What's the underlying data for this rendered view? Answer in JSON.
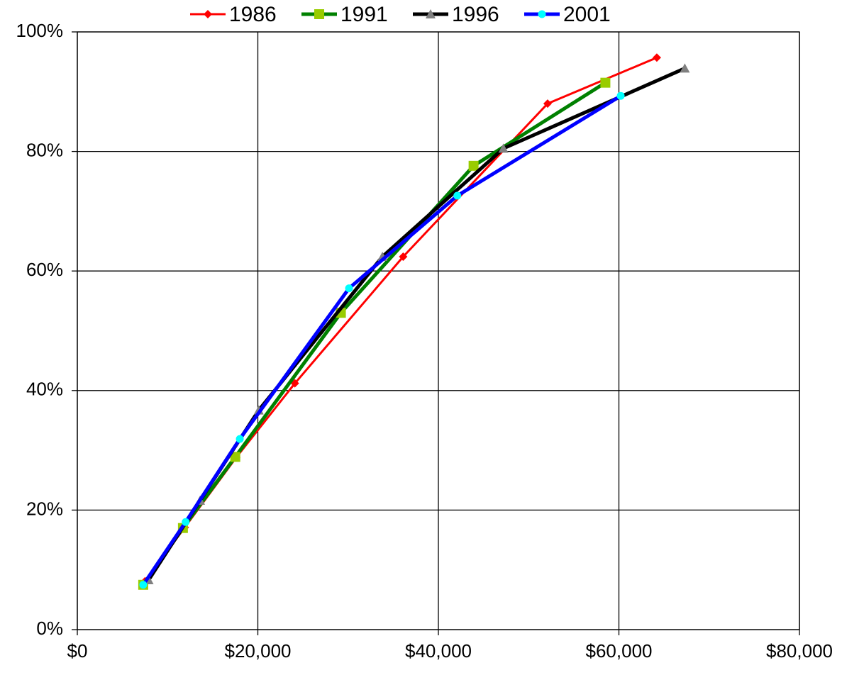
{
  "chart_data": {
    "type": "line",
    "series": [
      {
        "name": "1986",
        "color": "#ff0000",
        "marker_color": "#ff0000",
        "marker": "diamond",
        "width": 3,
        "x": [
          7500,
          11900,
          17600,
          24100,
          36100,
          52100,
          64200
        ],
        "values": [
          8.1,
          17.1,
          28.8,
          41.2,
          62.4,
          88.0,
          95.7
        ]
      },
      {
        "name": "1991",
        "color": "#008000",
        "marker_color": "#99cc00",
        "marker": "square",
        "width": 5,
        "x": [
          7300,
          11700,
          17500,
          29200,
          43900,
          58500
        ],
        "values": [
          7.5,
          17.0,
          28.9,
          53.0,
          77.6,
          91.5
        ]
      },
      {
        "name": "1996",
        "color": "#000000",
        "marker_color": "#808080",
        "marker": "triangle",
        "width": 5,
        "x": [
          7900,
          13600,
          20100,
          33800,
          47200,
          67300
        ],
        "values": [
          8.3,
          21.6,
          36.7,
          62.4,
          80.5,
          93.9
        ]
      },
      {
        "name": "2001",
        "color": "#0000ff",
        "marker_color": "#00ffff",
        "marker": "circle",
        "width": 5,
        "x": [
          7300,
          12000,
          18000,
          30100,
          42100,
          60200
        ],
        "values": [
          7.5,
          18.0,
          31.9,
          57.1,
          72.6,
          89.3
        ]
      }
    ],
    "xlim": [
      0,
      80000
    ],
    "xticks": [
      {
        "value": 0,
        "label": "$0"
      },
      {
        "value": 20000,
        "label": "$20,000"
      },
      {
        "value": 40000,
        "label": "$40,000"
      },
      {
        "value": 60000,
        "label": "$60,000"
      },
      {
        "value": 80000,
        "label": "$80,000"
      }
    ],
    "ylim": [
      0,
      100
    ],
    "yticks": [
      {
        "value": 0,
        "label": "0%"
      },
      {
        "value": 20,
        "label": "20%"
      },
      {
        "value": 40,
        "label": "40%"
      },
      {
        "value": 60,
        "label": "60%"
      },
      {
        "value": 80,
        "label": "80%"
      },
      {
        "value": 100,
        "label": "100%"
      }
    ],
    "grid": true,
    "legend": "top"
  }
}
